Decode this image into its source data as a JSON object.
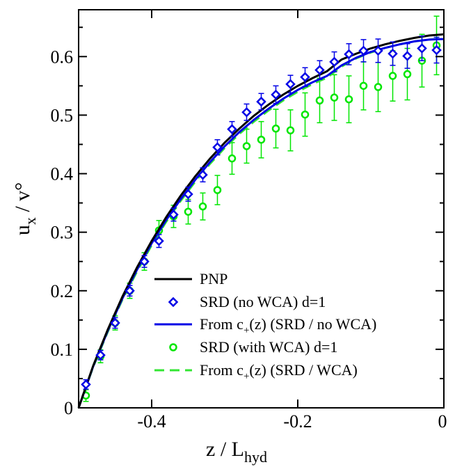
{
  "chart_data": {
    "type": "line",
    "title": "",
    "xlabel": "z / L",
    "xlabel_sub": "hyd",
    "ylabel": "u",
    "ylabel_sub": "x",
    "ylabel_rest": " / v°",
    "xlim": [
      -0.5,
      0.0
    ],
    "ylim": [
      0.0,
      0.68
    ],
    "xticks": [
      {
        "value": -0.4,
        "label": "-0.4"
      },
      {
        "value": -0.2,
        "label": "-0.2"
      },
      {
        "value": 0.0,
        "label": "0"
      }
    ],
    "yticks": [
      {
        "value": 0.0,
        "label": "0"
      },
      {
        "value": 0.1,
        "label": "0.1"
      },
      {
        "value": 0.2,
        "label": "0.2"
      },
      {
        "value": 0.3,
        "label": "0.3"
      },
      {
        "value": 0.4,
        "label": "0.4"
      },
      {
        "value": 0.5,
        "label": "0.5"
      },
      {
        "value": 0.6,
        "label": "0.6"
      }
    ],
    "grid": false,
    "legend_position": "bottom-right",
    "series": [
      {
        "name": "PNP",
        "kind": "line",
        "color": "#000000",
        "dash": "solid",
        "x": [
          -0.5,
          -0.48,
          -0.46,
          -0.44,
          -0.42,
          -0.4,
          -0.38,
          -0.36,
          -0.34,
          -0.32,
          -0.3,
          -0.28,
          -0.26,
          -0.24,
          -0.22,
          -0.2,
          -0.18,
          -0.16,
          -0.14,
          -0.12,
          -0.1,
          -0.08,
          -0.06,
          -0.04,
          -0.02,
          0.0
        ],
        "y": [
          0.0,
          0.072,
          0.134,
          0.19,
          0.24,
          0.285,
          0.326,
          0.363,
          0.396,
          0.426,
          0.453,
          0.477,
          0.499,
          0.518,
          0.535,
          0.55,
          0.563,
          0.575,
          0.595,
          0.605,
          0.614,
          0.621,
          0.627,
          0.632,
          0.636,
          0.638
        ]
      },
      {
        "name": "SRD (no WCA) d=1",
        "kind": "points",
        "marker": "diamond",
        "color": "#0000e6",
        "x": [
          -0.49,
          -0.47,
          -0.45,
          -0.43,
          -0.41,
          -0.39,
          -0.37,
          -0.35,
          -0.33,
          -0.31,
          -0.29,
          -0.27,
          -0.25,
          -0.23,
          -0.21,
          -0.19,
          -0.17,
          -0.15,
          -0.13,
          -0.11,
          -0.09,
          -0.07,
          -0.05,
          -0.03,
          -0.01
        ],
        "y": [
          0.04,
          0.09,
          0.145,
          0.2,
          0.25,
          0.285,
          0.33,
          0.365,
          0.398,
          0.445,
          0.476,
          0.505,
          0.523,
          0.535,
          0.553,
          0.565,
          0.577,
          0.591,
          0.604,
          0.61,
          0.61,
          0.605,
          0.601,
          0.614,
          0.611
        ],
        "err": [
          0.008,
          0.008,
          0.009,
          0.009,
          0.01,
          0.011,
          0.011,
          0.012,
          0.012,
          0.013,
          0.013,
          0.014,
          0.014,
          0.015,
          0.015,
          0.016,
          0.016,
          0.017,
          0.018,
          0.019,
          0.02,
          0.02,
          0.021,
          0.021,
          0.022
        ]
      },
      {
        "name": "From c+(z) (SRD / no WCA)",
        "kind": "line",
        "color": "#0000e6",
        "dash": "solid",
        "x": [
          -0.5,
          -0.48,
          -0.46,
          -0.44,
          -0.42,
          -0.4,
          -0.38,
          -0.36,
          -0.34,
          -0.32,
          -0.3,
          -0.28,
          -0.26,
          -0.24,
          -0.22,
          -0.2,
          -0.18,
          -0.16,
          -0.14,
          -0.12,
          -0.1,
          -0.08,
          -0.06,
          -0.04,
          -0.02,
          0.0
        ],
        "y": [
          0.0,
          0.071,
          0.132,
          0.187,
          0.236,
          0.281,
          0.321,
          0.357,
          0.39,
          0.42,
          0.447,
          0.471,
          0.492,
          0.511,
          0.528,
          0.543,
          0.556,
          0.567,
          0.585,
          0.598,
          0.608,
          0.615,
          0.621,
          0.626,
          0.629,
          0.63
        ]
      },
      {
        "name": "SRD (with WCA) d=1",
        "kind": "points",
        "marker": "circle",
        "color": "#00e600",
        "x": [
          -0.49,
          -0.47,
          -0.45,
          -0.43,
          -0.41,
          -0.39,
          -0.37,
          -0.35,
          -0.33,
          -0.31,
          -0.29,
          -0.27,
          -0.25,
          -0.23,
          -0.21,
          -0.19,
          -0.17,
          -0.15,
          -0.13,
          -0.11,
          -0.09,
          -0.07,
          -0.05,
          -0.03,
          -0.01
        ],
        "y": [
          0.021,
          0.088,
          0.145,
          0.2,
          0.25,
          0.303,
          0.327,
          0.335,
          0.344,
          0.372,
          0.426,
          0.447,
          0.458,
          0.477,
          0.474,
          0.501,
          0.525,
          0.53,
          0.527,
          0.55,
          0.548,
          0.567,
          0.57,
          0.593,
          0.619
        ],
        "err": [
          0.01,
          0.011,
          0.012,
          0.013,
          0.015,
          0.017,
          0.019,
          0.021,
          0.023,
          0.025,
          0.027,
          0.029,
          0.031,
          0.033,
          0.035,
          0.037,
          0.038,
          0.039,
          0.04,
          0.041,
          0.042,
          0.043,
          0.044,
          0.045,
          0.05
        ]
      },
      {
        "name": "From c+(z) (SRD / WCA)",
        "kind": "line",
        "color": "#33e633",
        "dash": "dashed",
        "x": [
          -0.5,
          -0.48,
          -0.46,
          -0.44,
          -0.42,
          -0.4,
          -0.38,
          -0.36,
          -0.34,
          -0.32,
          -0.3,
          -0.28,
          -0.26,
          -0.24,
          -0.22,
          -0.2,
          -0.18,
          -0.16,
          -0.14,
          -0.12,
          -0.1,
          -0.08,
          -0.06,
          -0.04,
          -0.02,
          0.0
        ],
        "y": [
          0.0,
          0.07,
          0.13,
          0.185,
          0.233,
          0.278,
          0.318,
          0.354,
          0.387,
          0.417,
          0.444,
          0.468,
          0.489,
          0.508,
          0.525,
          0.54,
          0.553,
          0.564,
          0.583,
          0.597,
          0.607,
          0.615,
          0.621,
          0.626,
          0.629,
          0.631
        ]
      }
    ],
    "legend": [
      {
        "series": 0,
        "label": "PNP"
      },
      {
        "series": 1,
        "label": "SRD (no WCA) d=1"
      },
      {
        "series": 2,
        "label_pre": "From c",
        "label_sub": "+",
        "label_post": "(z) (SRD / no WCA)"
      },
      {
        "series": 3,
        "label": "SRD (with WCA) d=1"
      },
      {
        "series": 4,
        "label_pre": "From c",
        "label_sub": "+",
        "label_post": "(z) (SRD / WCA)"
      }
    ]
  }
}
